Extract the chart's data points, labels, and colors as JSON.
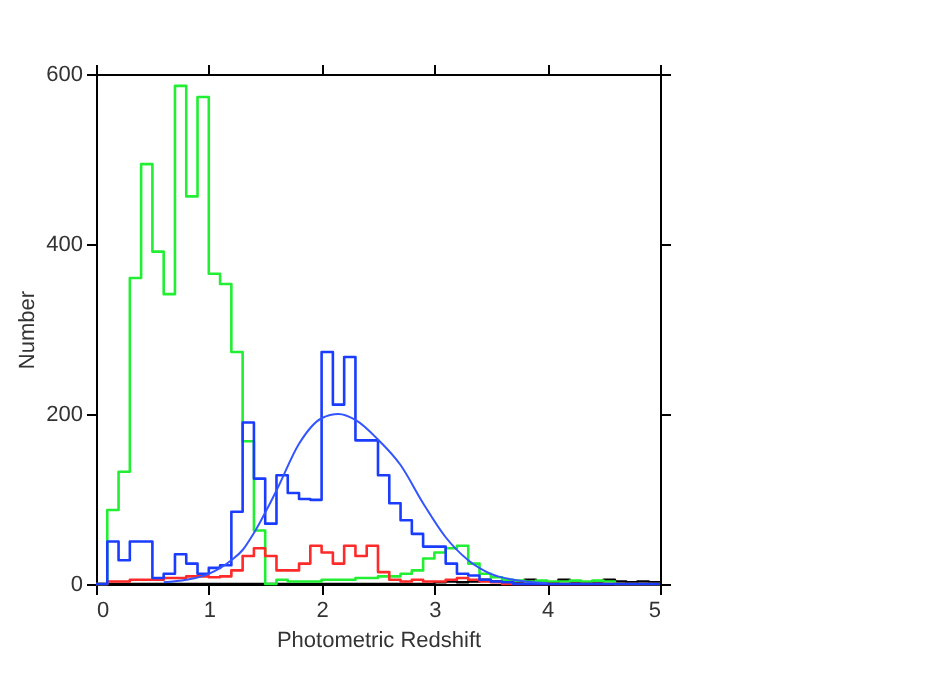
{
  "chart_data": {
    "type": "histogram",
    "xlabel": "Photometric Redshift",
    "ylabel": "Number",
    "bins": [
      0,
      0.1,
      0.2,
      0.3,
      0.4,
      0.5,
      0.6,
      0.7,
      0.8,
      0.9,
      1.0,
      1.1,
      1.2,
      1.3,
      1.4,
      1.5,
      1.6,
      1.7,
      1.8,
      1.9,
      2.0,
      2.1,
      2.2,
      2.3,
      2.4,
      2.5,
      2.6,
      2.7,
      2.8,
      2.9,
      3.0,
      3.1,
      3.2,
      3.3,
      3.4,
      3.5,
      3.6,
      3.7,
      3.8,
      3.9,
      4.0,
      4.1,
      4.2,
      4.3,
      4.4,
      4.5,
      4.6,
      4.7,
      4.8,
      4.9,
      5.0
    ],
    "series": [
      {
        "color": "#000000",
        "values": [
          0,
          0,
          0,
          0,
          0,
          0,
          0,
          0,
          0,
          0,
          0,
          0,
          0,
          0,
          0,
          0,
          0,
          0,
          0,
          0,
          0,
          0,
          0,
          0,
          0,
          0,
          0,
          0,
          0,
          0,
          2,
          3,
          2,
          3,
          5,
          3,
          2,
          3,
          5,
          3,
          2,
          5,
          3,
          2,
          3,
          5,
          3,
          2,
          3,
          2
        ]
      },
      {
        "color": "#22ee33",
        "values": [
          0,
          87,
          132,
          360,
          494,
          391,
          341,
          586,
          456,
          573,
          365,
          353,
          273,
          168,
          63,
          0,
          5,
          3,
          3,
          3,
          5,
          5,
          5,
          7,
          7,
          9,
          9,
          12,
          16,
          30,
          37,
          42,
          45,
          24,
          12,
          8,
          5,
          4,
          3,
          4,
          3,
          3,
          4,
          3,
          4,
          3,
          0,
          0,
          0,
          0
        ]
      },
      {
        "color": "#ff2a2a",
        "values": [
          0,
          3,
          3,
          5,
          5,
          5,
          7,
          7,
          9,
          9,
          8,
          9,
          16,
          33,
          42,
          33,
          16,
          16,
          24,
          45,
          37,
          24,
          45,
          33,
          45,
          14,
          5,
          3,
          5,
          3,
          3,
          5,
          7,
          5,
          3,
          2,
          0,
          0,
          0,
          0,
          0,
          0,
          0,
          0,
          0,
          0,
          0,
          0,
          0,
          0
        ]
      },
      {
        "color": "#1a3cff",
        "values": [
          0,
          50,
          28,
          50,
          50,
          7,
          12,
          35,
          24,
          12,
          19,
          22,
          85,
          190,
          124,
          71,
          128,
          107,
          100,
          99,
          273,
          211,
          267,
          169,
          169,
          128,
          95,
          75,
          59,
          44,
          44,
          24,
          12,
          10,
          5,
          3,
          2,
          0,
          0,
          0,
          0,
          0,
          0,
          0,
          0,
          0,
          0,
          0,
          0,
          0
        ]
      },
      {
        "type": "line",
        "color": "#3355ff",
        "x": [
          0.6,
          0.8,
          1.0,
          1.2,
          1.3,
          1.4,
          1.6,
          1.8,
          2.0,
          2.15,
          2.3,
          2.5,
          2.7,
          2.9,
          3.1,
          3.3,
          3.5,
          3.7,
          4.0
        ],
        "values": [
          2,
          5,
          12,
          28,
          40,
          60,
          110,
          165,
          195,
          200,
          193,
          170,
          140,
          95,
          55,
          28,
          12,
          5,
          1
        ]
      }
    ],
    "xlim": [
      0,
      5
    ],
    "ylim": [
      0,
      600
    ],
    "xticks": [
      0,
      1,
      2,
      3,
      4,
      5
    ],
    "yticks": [
      0,
      200,
      400,
      600
    ],
    "grid": false,
    "legend": false
  }
}
